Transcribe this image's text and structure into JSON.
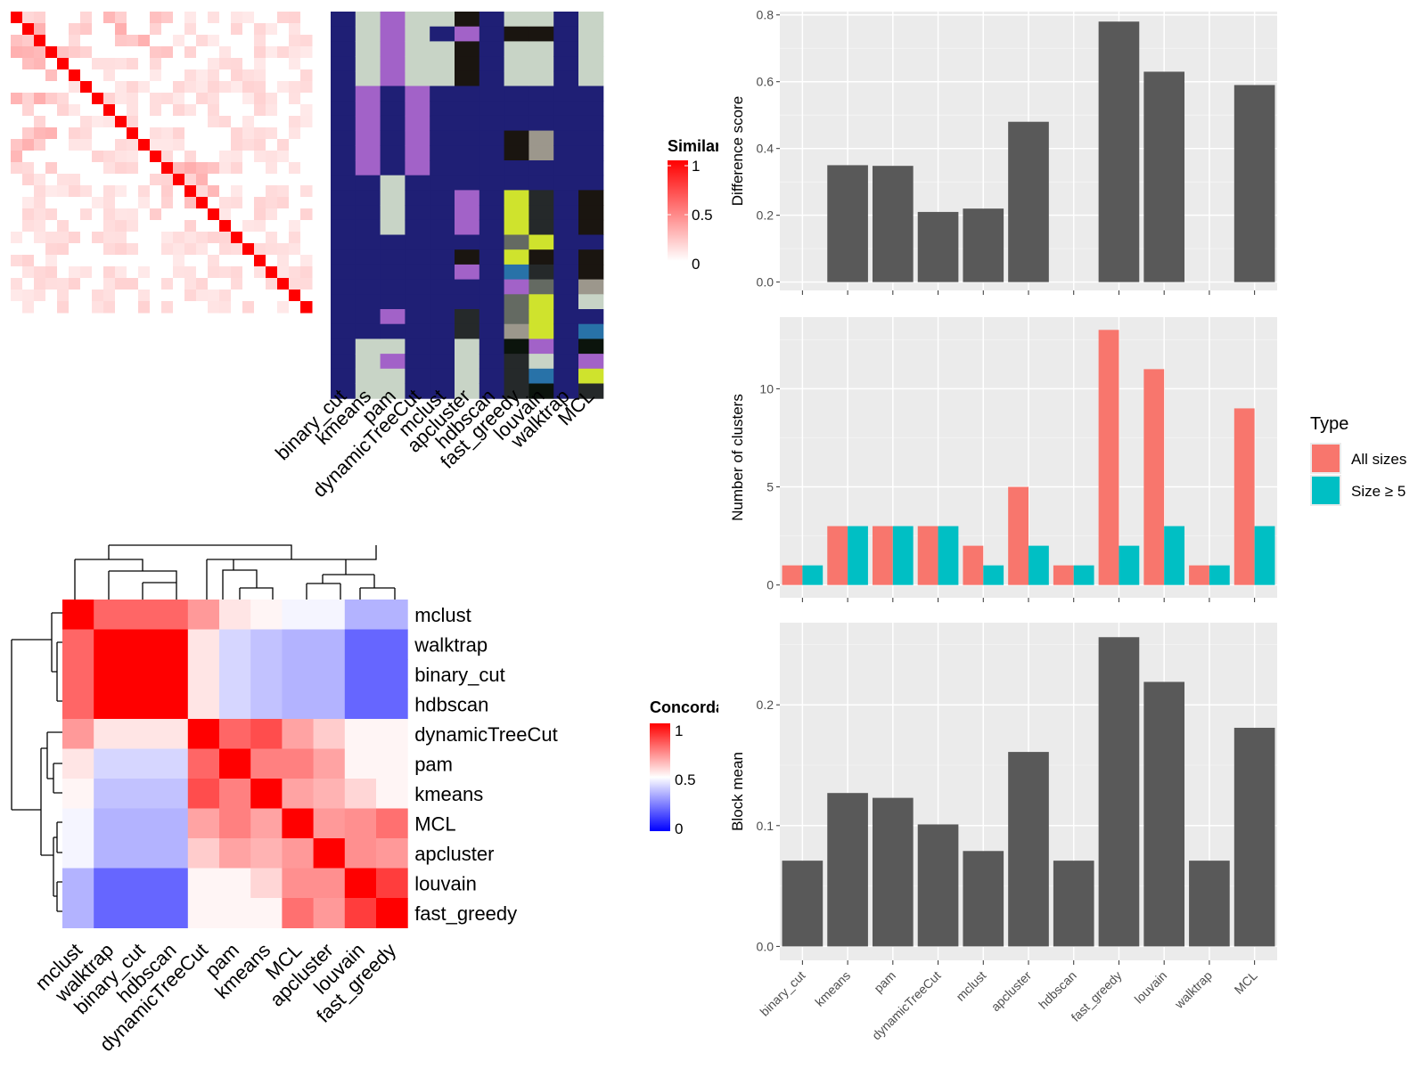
{
  "colors": {
    "panel_bg": "#ebebeb",
    "bar_fill": "#595959",
    "all_sizes": "#f8766d",
    "size_ge_5": "#00bfc4",
    "hm_red": "#ff0000",
    "hm_white": "#ffffff",
    "hm_blue": "#0000ff",
    "navy": "#1f1f75"
  },
  "methods": [
    "binary_cut",
    "kmeans",
    "pam",
    "dynamicTreeCut",
    "mclust",
    "apcluster",
    "hdbscan",
    "fast_greedy",
    "louvain",
    "walktrap",
    "MCL"
  ],
  "similarity_legend": {
    "title": "Similarity",
    "ticks": [
      "1",
      "0.5",
      "0"
    ]
  },
  "concordance_legend": {
    "title": "Concordance",
    "ticks": [
      "1",
      "0.5",
      "0"
    ]
  },
  "type_legend": {
    "title": "Type",
    "items": [
      {
        "label": "All sizes",
        "color": "#f8766d"
      },
      {
        "label": "Size ≥ 5",
        "color": "#00bfc4"
      }
    ]
  },
  "concordance_heatmap": {
    "order": [
      "mclust",
      "walktrap",
      "binary_cut",
      "hdbscan",
      "dynamicTreeCut",
      "pam",
      "kmeans",
      "MCL",
      "apcluster",
      "louvain",
      "fast_greedy"
    ]
  },
  "chart_data": [
    {
      "type": "bar",
      "ylabel": "Difference score",
      "categories": [
        "binary_cut",
        "kmeans",
        "pam",
        "dynamicTreeCut",
        "mclust",
        "apcluster",
        "hdbscan",
        "fast_greedy",
        "louvain",
        "walktrap",
        "MCL"
      ],
      "values": [
        0,
        0.35,
        0.348,
        0.21,
        0.22,
        0.48,
        0,
        0.78,
        0.63,
        0,
        0.59
      ],
      "ylim": [
        -0.025,
        0.81
      ],
      "yticks": [
        0.0,
        0.2,
        0.4,
        0.6,
        0.8
      ],
      "ytick_labels": [
        "0.0",
        "0.2",
        "0.4",
        "0.6",
        "0.8"
      ]
    },
    {
      "type": "bar",
      "ylabel": "Number of clusters",
      "categories": [
        "binary_cut",
        "kmeans",
        "pam",
        "dynamicTreeCut",
        "mclust",
        "apcluster",
        "hdbscan",
        "fast_greedy",
        "louvain",
        "walktrap",
        "MCL"
      ],
      "series": [
        {
          "name": "All sizes",
          "values": [
            1,
            3,
            3,
            3,
            2,
            5,
            1,
            13,
            11,
            1,
            9
          ]
        },
        {
          "name": "Size ≥ 5",
          "values": [
            1,
            3,
            3,
            3,
            1,
            2,
            1,
            2,
            3,
            1,
            3
          ]
        }
      ],
      "ylim": [
        -0.65,
        13.65
      ],
      "yticks": [
        0,
        5,
        10
      ],
      "ytick_labels": [
        "0",
        "5",
        "10"
      ]
    },
    {
      "type": "bar",
      "ylabel": "Block mean",
      "categories": [
        "binary_cut",
        "kmeans",
        "pam",
        "dynamicTreeCut",
        "mclust",
        "apcluster",
        "hdbscan",
        "fast_greedy",
        "louvain",
        "walktrap",
        "MCL"
      ],
      "values": [
        0.071,
        0.127,
        0.123,
        0.101,
        0.079,
        0.161,
        0.071,
        0.256,
        0.219,
        0.071,
        0.181
      ],
      "ylim": [
        -0.0115,
        0.268
      ],
      "yticks": [
        0.0,
        0.1,
        0.2
      ],
      "ytick_labels": [
        "0.0",
        "0.1",
        "0.2"
      ]
    },
    {
      "type": "heatmap",
      "rows": [
        "mclust",
        "walktrap",
        "binary_cut",
        "hdbscan",
        "dynamicTreeCut",
        "pam",
        "kmeans",
        "MCL",
        "apcluster",
        "louvain",
        "fast_greedy"
      ],
      "columns": [
        "mclust",
        "walktrap",
        "binary_cut",
        "hdbscan",
        "dynamicTreeCut",
        "pam",
        "kmeans",
        "MCL",
        "apcluster",
        "louvain",
        "fast_greedy"
      ],
      "values": [
        [
          1.0,
          0.8,
          0.8,
          0.8,
          0.7,
          0.55,
          0.52,
          0.48,
          0.48,
          0.35,
          0.35
        ],
        [
          0.8,
          1.0,
          1.0,
          1.0,
          0.55,
          0.42,
          0.38,
          0.35,
          0.35,
          0.2,
          0.2
        ],
        [
          0.8,
          1.0,
          1.0,
          1.0,
          0.55,
          0.42,
          0.38,
          0.35,
          0.35,
          0.2,
          0.2
        ],
        [
          0.8,
          1.0,
          1.0,
          1.0,
          0.55,
          0.42,
          0.38,
          0.35,
          0.35,
          0.2,
          0.2
        ],
        [
          0.7,
          0.55,
          0.55,
          0.55,
          1.0,
          0.8,
          0.85,
          0.68,
          0.6,
          0.52,
          0.52
        ],
        [
          0.55,
          0.42,
          0.42,
          0.42,
          0.8,
          1.0,
          0.75,
          0.75,
          0.68,
          0.52,
          0.52
        ],
        [
          0.52,
          0.38,
          0.38,
          0.38,
          0.85,
          0.75,
          1.0,
          0.68,
          0.65,
          0.58,
          0.52
        ],
        [
          0.48,
          0.35,
          0.35,
          0.35,
          0.68,
          0.75,
          0.68,
          1.0,
          0.7,
          0.72,
          0.78
        ],
        [
          0.48,
          0.35,
          0.35,
          0.35,
          0.6,
          0.68,
          0.65,
          0.7,
          1.0,
          0.72,
          0.7
        ],
        [
          0.35,
          0.2,
          0.2,
          0.2,
          0.52,
          0.52,
          0.58,
          0.72,
          0.72,
          1.0,
          0.88
        ],
        [
          0.35,
          0.2,
          0.2,
          0.2,
          0.52,
          0.52,
          0.52,
          0.78,
          0.7,
          0.88,
          1.0
        ]
      ],
      "scale": [
        0,
        1
      ]
    },
    {
      "type": "heatmap",
      "columns": [
        "binary_cut",
        "kmeans",
        "pam",
        "dynamicTreeCut",
        "mclust",
        "apcluster",
        "hdbscan",
        "fast_greedy",
        "louvain",
        "walktrap",
        "MCL"
      ],
      "n_rows": 26,
      "scale": [
        0,
        1
      ]
    }
  ]
}
